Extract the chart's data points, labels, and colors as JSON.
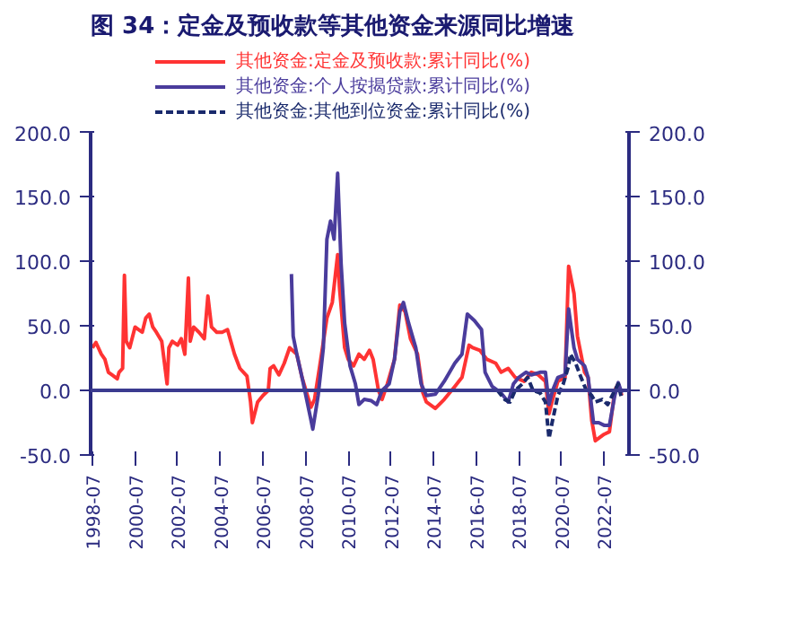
{
  "chart_data": {
    "type": "line",
    "title": "图 34：定金及预收款等其他资金来源同比增速",
    "xlim": [
      "1998-06",
      "2023-09"
    ],
    "xticks": [
      "1998-07",
      "2000-07",
      "2002-07",
      "2004-07",
      "2006-07",
      "2008-07",
      "2010-07",
      "2012-07",
      "2014-07",
      "2016-07",
      "2018-07",
      "2020-07",
      "2022-07"
    ],
    "ylim": [
      -50,
      200
    ],
    "yticks": [
      {
        "value": -50,
        "label": "-50.0"
      },
      {
        "value": 0,
        "label": "0.0"
      },
      {
        "value": 50,
        "label": "50.0"
      },
      {
        "value": 100,
        "label": "100.0"
      },
      {
        "value": 150,
        "label": "150.0"
      },
      {
        "value": 200,
        "label": "200.0"
      }
    ],
    "y2lim": [
      -50,
      200
    ],
    "y2ticks": [
      {
        "value": -50,
        "label": "-50.0"
      },
      {
        "value": 0,
        "label": "0.0"
      },
      {
        "value": 50,
        "label": "50.0"
      },
      {
        "value": 100,
        "label": "100.0"
      },
      {
        "value": 150,
        "label": "150.0"
      },
      {
        "value": 200,
        "label": "200.0"
      }
    ],
    "grid": false,
    "legend": "top",
    "ref_lines": [
      {
        "axis": "y",
        "value": 0,
        "color": "#3b3b8f"
      }
    ],
    "series": [
      {
        "name": "其他资金:定金及预收款:累计同比(%)",
        "color": "#ff3333",
        "line_style": "solid",
        "x": [
          "1998-07",
          "1998-09",
          "1998-12",
          "1999-02",
          "1999-04",
          "1999-06",
          "1999-09",
          "1999-10",
          "1999-12",
          "2000-01",
          "2000-02",
          "2000-04",
          "2000-07",
          "2000-09",
          "2000-11",
          "2001-01",
          "2001-03",
          "2001-05",
          "2001-07",
          "2001-10",
          "2002-01",
          "2002-02",
          "2002-04",
          "2002-07",
          "2002-09",
          "2002-11",
          "2003-01",
          "2003-02",
          "2003-04",
          "2003-07",
          "2003-10",
          "2003-12",
          "2004-02",
          "2004-05",
          "2004-08",
          "2004-11",
          "2005-03",
          "2005-06",
          "2005-10",
          "2005-12",
          "2006-01",
          "2006-04",
          "2006-07",
          "2006-10",
          "2006-11",
          "2007-01",
          "2007-04",
          "2007-07",
          "2007-10",
          "2008-02",
          "2008-05",
          "2008-10",
          "2008-12",
          "2009-03",
          "2009-07",
          "2009-10",
          "2010-01",
          "2010-02",
          "2010-05",
          "2010-07",
          "2010-10",
          "2011-01",
          "2011-04",
          "2011-07",
          "2011-09",
          "2011-12",
          "2012-02",
          "2012-05",
          "2012-09",
          "2012-12",
          "2013-03",
          "2013-06",
          "2013-10",
          "2014-01",
          "2014-03",
          "2014-08",
          "2015-01",
          "2015-07",
          "2015-11",
          "2016-03",
          "2016-05",
          "2016-09",
          "2017-01",
          "2017-06",
          "2017-09",
          "2018-01",
          "2018-05",
          "2018-10",
          "2019-02",
          "2019-06",
          "2019-10",
          "2019-12",
          "2020-02",
          "2020-05",
          "2020-09",
          "2020-11",
          "2021-02",
          "2021-04",
          "2021-08",
          "2021-10",
          "2021-12",
          "2022-02",
          "2022-07",
          "2022-10",
          "2023-01",
          "2023-03",
          "2023-05"
        ],
        "values": [
          33,
          37,
          28,
          24,
          14,
          12,
          9,
          14,
          17,
          89,
          38,
          33,
          49,
          47,
          45,
          56,
          59,
          49,
          45,
          38,
          5,
          33,
          38,
          35,
          40,
          28,
          87,
          38,
          49,
          45,
          40,
          73,
          49,
          45,
          45,
          47,
          28,
          17,
          11,
          -9,
          -25,
          -9,
          -4,
          0,
          17,
          19,
          12,
          21,
          33,
          28,
          10,
          -13,
          -7,
          19,
          56,
          68,
          105,
          80,
          33,
          24,
          19,
          28,
          24,
          31,
          24,
          0,
          -7,
          5,
          24,
          66,
          61,
          40,
          28,
          -2,
          -9,
          -14,
          -7,
          3,
          10,
          35,
          33,
          31,
          24,
          21,
          14,
          17,
          10,
          7,
          14,
          12,
          7,
          -18,
          -7,
          7,
          10,
          96,
          75,
          42,
          14,
          10,
          -23,
          -39,
          -34,
          -32,
          0,
          5,
          -4
        ]
      },
      {
        "name": "其他资金:个人按揭贷款:累计同比(%)",
        "color": "#4a3c9c",
        "line_style": "solid",
        "x": [
          "2007-11",
          "2007-12",
          "2008-02",
          "2008-05",
          "2008-10",
          "2008-11",
          "2009-02",
          "2009-05",
          "2009-07",
          "2009-09",
          "2009-11",
          "2010-01",
          "2010-03",
          "2010-05",
          "2010-08",
          "2010-11",
          "2011-01",
          "2011-04",
          "2011-08",
          "2011-11",
          "2012-02",
          "2012-06",
          "2012-09",
          "2012-12",
          "2013-02",
          "2013-05",
          "2013-09",
          "2013-12",
          "2014-03",
          "2014-08",
          "2015-01",
          "2015-07",
          "2015-11",
          "2016-02",
          "2016-06",
          "2016-10",
          "2016-12",
          "2017-04",
          "2017-09",
          "2018-01",
          "2018-04",
          "2018-07",
          "2018-11",
          "2019-02",
          "2019-07",
          "2019-10",
          "2019-12",
          "2020-02",
          "2020-05",
          "2020-09",
          "2020-11",
          "2021-02",
          "2021-04",
          "2021-08",
          "2021-10",
          "2022-01",
          "2022-04",
          "2022-07",
          "2022-10",
          "2023-01",
          "2023-03",
          "2023-05"
        ],
        "values": [
          90,
          42,
          28,
          10,
          -23,
          -30,
          -4,
          33,
          117,
          131,
          117,
          168,
          98,
          52,
          19,
          5,
          -11,
          -7,
          -8,
          -11,
          0,
          5,
          24,
          61,
          68,
          52,
          33,
          5,
          -4,
          -3,
          7,
          21,
          28,
          59,
          54,
          47,
          14,
          3,
          -2,
          -9,
          5,
          10,
          14,
          12,
          14,
          14,
          -11,
          0,
          10,
          12,
          63,
          33,
          24,
          19,
          10,
          -25,
          -25,
          -27,
          -27,
          -4,
          6,
          -2
        ]
      },
      {
        "name": "其他资金:其他到位资金:累计同比(%)",
        "color": "#1a2a6c",
        "line_style": "dashed",
        "x": [
          "2017-07",
          "2017-11",
          "2018-02",
          "2018-05",
          "2018-09",
          "2018-12",
          "2019-03",
          "2019-07",
          "2019-10",
          "2019-12",
          "2020-02",
          "2020-05",
          "2020-08",
          "2020-11",
          "2020-12",
          "2021-03",
          "2021-06",
          "2021-09",
          "2021-12",
          "2022-02",
          "2022-06",
          "2022-09",
          "2023-01",
          "2023-03",
          "2023-05"
        ],
        "values": [
          0,
          -7,
          -9,
          0,
          5,
          10,
          0,
          -2,
          -9,
          -37,
          -23,
          -4,
          5,
          19,
          28,
          21,
          10,
          0,
          -4,
          -9,
          -7,
          -11,
          0,
          5,
          -7
        ]
      }
    ]
  }
}
